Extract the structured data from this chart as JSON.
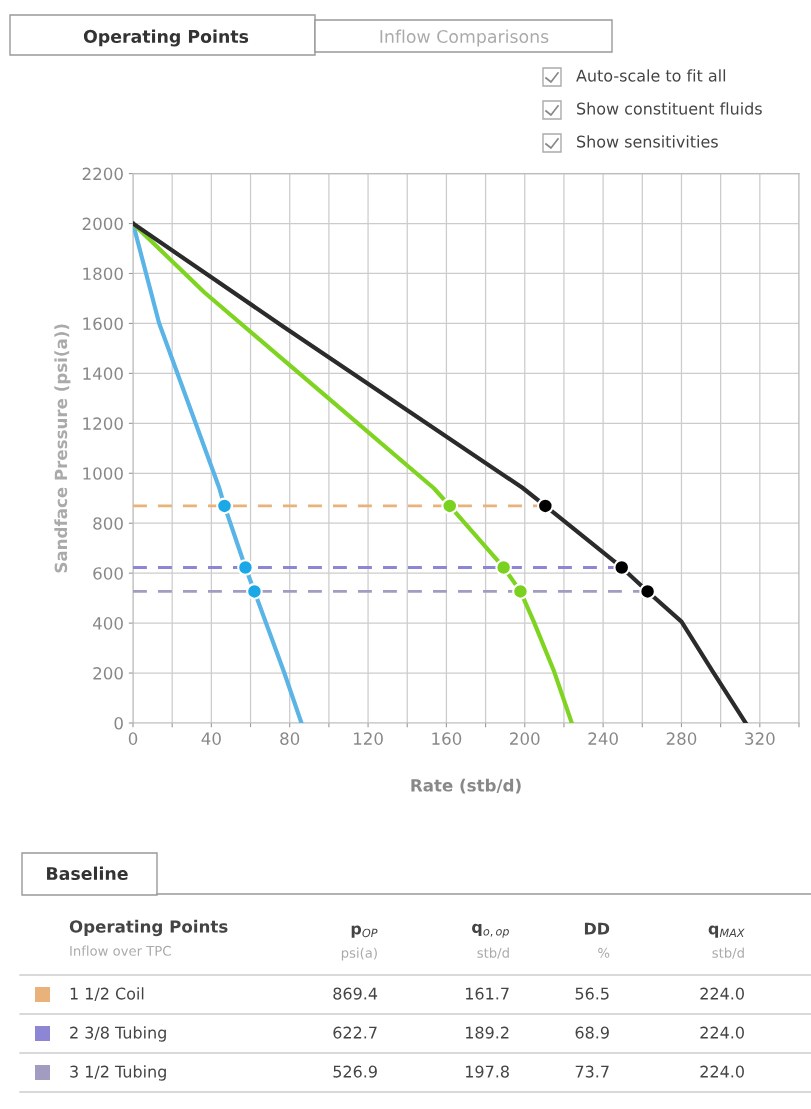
{
  "chart_data": {
    "type": "line",
    "xlabel": "Rate (stb/d)",
    "ylabel": "Sandface Pressure (psi(a))",
    "xlim": [
      0,
      340
    ],
    "ylim": [
      0,
      2200
    ],
    "xticks": [
      0,
      {
        "value": 20,
        "label": null
      },
      40,
      {
        "value": 60,
        "label": null
      },
      80,
      {
        "value": 100,
        "label": null
      },
      120,
      {
        "value": 140,
        "label": null
      },
      160,
      {
        "value": 180,
        "label": null
      },
      200,
      {
        "value": 220,
        "label": null
      },
      240,
      {
        "value": 260,
        "label": null
      },
      280,
      {
        "value": 300,
        "label": null
      },
      320,
      {
        "value": 340,
        "label": null
      }
    ],
    "yticks": [
      0,
      200,
      400,
      600,
      800,
      1000,
      1200,
      1400,
      1600,
      1800,
      2000,
      2200
    ],
    "grid": true,
    "legend": "bottom",
    "series": [
      {
        "type": "line",
        "color": "#e8b27a",
        "line_style": "dashed",
        "name": "1 1/2 Coil",
        "x": [
          0,
          210.5
        ],
        "values": [
          869.4,
          869.4
        ]
      },
      {
        "type": "line",
        "color": "#8c86d4",
        "line_style": "dashed",
        "name": "2 3/8 Tubing",
        "x": [
          0,
          249.5
        ],
        "values": [
          622.7,
          622.7
        ]
      },
      {
        "type": "line",
        "color": "#a29cc0",
        "line_style": "dashed",
        "name": "3 1/2 Tubing",
        "x": [
          0,
          262.7
        ],
        "values": [
          526.9,
          526.9
        ]
      },
      {
        "color": "#5ab4e5",
        "x": [
          0,
          13.3,
          44,
          46.7,
          57.4,
          62,
          77,
          86
        ],
        "values": [
          2000,
          1602,
          942,
          869.4,
          622.7,
          526.9,
          206,
          0
        ]
      },
      {
        "color": "#7fd321",
        "x": [
          0,
          36.5,
          100,
          153.6,
          161.7,
          189.2,
          197.8,
          204.6,
          215,
          224
        ],
        "values": [
          2000,
          1724,
          1299,
          940,
          869.4,
          622.7,
          526.9,
          406,
          206,
          0
        ]
      },
      {
        "color": "#2b2b2b",
        "x": [
          0,
          77,
          198.8,
          210.5,
          249.5,
          262.7,
          280,
          296,
          312.8
        ],
        "values": [
          2000,
          1586,
          942,
          869.4,
          622.7,
          526.9,
          406,
          206,
          0
        ]
      },
      {
        "type": "scatter",
        "marker": "circle",
        "color": "#1aa9e6",
        "x": [
          46.7,
          57.4,
          62
        ],
        "values": [
          869.4,
          622.7,
          526.9
        ]
      },
      {
        "type": "scatter",
        "marker": "circle",
        "color": "#7ad11f",
        "x": [
          161.7,
          189.2,
          197.8
        ],
        "values": [
          869.4,
          622.7,
          526.9
        ]
      },
      {
        "type": "scatter",
        "marker": "circle",
        "color": "#000000",
        "x": [
          210.5,
          249.5,
          262.7
        ],
        "values": [
          869.4,
          622.7,
          526.9
        ]
      }
    ],
    "annotations": [
      "Operating Points",
      "Inflow Comparisons",
      "Auto-scale to fit all",
      "Show constituent fluids",
      "Show sensitivities",
      "Baseline",
      "Operating Points",
      "Inflow over TPC",
      "p$_{OP}$",
      "psi(a)",
      "q$_{o,op}$",
      "stb/d",
      "DD",
      "%",
      "q$_{MAX}$",
      "stb/d",
      "869.4",
      "161.7",
      "56.5",
      "224.0",
      "622.7",
      "189.2",
      "68.9",
      "224.0",
      "526.9",
      "197.8",
      "73.7",
      "224.0"
    ]
  }
}
